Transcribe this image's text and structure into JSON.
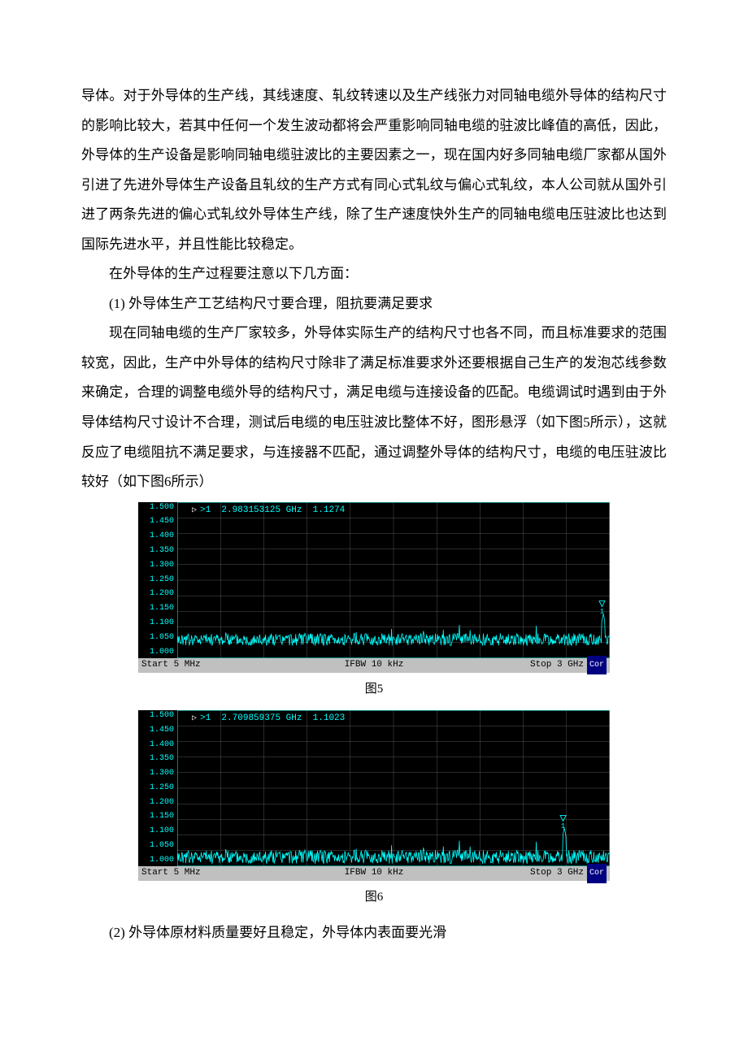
{
  "text": {
    "p1": "导体。对于外导体的生产线，其线速度、轧纹转速以及生产线张力对同轴电缆外导体的结构尺寸的影响比较大，若其中任何一个发生波动都将会严重影响同轴电缆的驻波比峰值的高低，因此，外导体的生产设备是影响同轴电缆驻波比的主要因素之一，现在国内好多同轴电缆厂家都从国外引进了先进外导体生产设备且轧纹的生产方式有同心式轧纹与偏心式轧纹，本人公司就从国外引进了两条先进的偏心式轧纹外导体生产线，除了生产速度快外生产的同轴电缆电压驻波比也达到国际先进水平，并且性能比较稳定。",
    "p2": "在外导体的生产过程要注意以下几方面：",
    "p3": "(1) 外导体生产工艺结构尺寸要合理，阻抗要满足要求",
    "p4": "现在同轴电缆的生产厂家较多，外导体实际生产的结构尺寸也各不同，而且标准要求的范围较宽，因此，生产中外导体的结构尺寸除非了满足标准要求外还要根据自己生产的发泡芯线参数来确定，合理的调整电缆外导的结构尺寸，满足电缆与连接设备的匹配。电缆调试时遇到由于外导体结构尺寸设计不合理，测试后电缆的电压驻波比整体不好，图形悬浮（如下图5所示），这就反应了电缆阻抗不满足要求，与连接器不匹配，通过调整外导体的结构尺寸，电缆的电压驻波比较好（如下图6所示）",
    "p5": "(2) 外导体原材料质量要好且稳定，外导体内表面要光滑"
  },
  "caption5": "图5",
  "caption6": "图6",
  "axis": {
    "ticks": [
      "1.500",
      "1.450",
      "1.400",
      "1.350",
      "1.300",
      "1.250",
      "1.200",
      "1.150",
      "1.100",
      "1.050",
      "1.000"
    ],
    "ymin": 1.0,
    "ymax": 1.5
  },
  "chart5": {
    "marker_label": ">1  2.983153125 GHz  1.1274",
    "footer_left": "Start 5 MHz",
    "footer_center": "IFBW 10 kHz",
    "footer_right": "Stop 3 GHz",
    "cor": "Cor",
    "baseline": 1.06,
    "noise_amp": 0.02,
    "spike_x": 0.985,
    "spike_y": 1.145,
    "marker_pos_pct": 98.2
  },
  "chart6": {
    "marker_label": ">1  2.709859375 GHz  1.1023",
    "footer_left": "Start 5 MHz",
    "footer_center": "IFBW 10 kHz",
    "footer_right": "Stop 3 GHz",
    "cor": "Cor",
    "baseline": 1.03,
    "noise_amp": 0.022,
    "spike_x": 0.895,
    "spike_y": 1.125,
    "marker_pos_pct": 89.2
  },
  "colors": {
    "trace": "#00ffff",
    "grid": "#555555",
    "plot_bg": "#000000",
    "footer_bg": "#c0c0c0",
    "cor_bg": "#000080"
  }
}
